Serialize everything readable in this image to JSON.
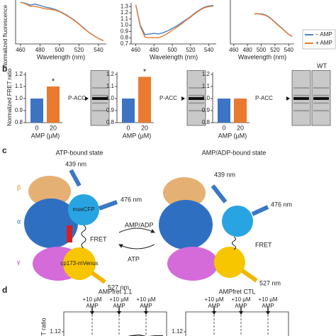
{
  "panel_labels": [
    "b",
    "c",
    "d"
  ],
  "chart_data": [
    {
      "type": "line",
      "ylabel": "Normalized fluorescence",
      "xlabel": "Wavelength (nm)",
      "x": [
        460,
        465,
        470,
        475,
        480,
        485,
        490,
        495,
        500,
        505,
        510,
        515,
        520,
        525,
        530,
        535,
        540,
        545
      ],
      "xlim": [
        455,
        548
      ],
      "xticks": [
        460,
        480,
        500,
        520,
        540
      ],
      "ylim": [
        0,
        1.05
      ],
      "yticks": [],
      "series": [
        {
          "name": "– AMP",
          "color": "#4a80c8",
          "values": [
            1.0,
            0.97,
            0.93,
            0.95,
            0.92,
            0.88,
            0.86,
            0.83,
            0.78,
            0.72,
            0.65,
            0.57,
            0.48,
            0.38,
            0.28,
            0.2,
            0.13,
            0.08
          ]
        },
        {
          "name": "+ AMP",
          "color": "#ea7a30",
          "values": [
            1.0,
            0.96,
            0.9,
            0.9,
            0.87,
            0.84,
            0.83,
            0.81,
            0.77,
            0.71,
            0.64,
            0.56,
            0.47,
            0.37,
            0.28,
            0.2,
            0.13,
            0.08
          ]
        }
      ]
    },
    {
      "type": "line",
      "xlabel": "Wavelength (nm)",
      "x": [
        460,
        465,
        470,
        475,
        480,
        485,
        490,
        495,
        500,
        505,
        510,
        515,
        520,
        525,
        530,
        535,
        540,
        545
      ],
      "xlim": [
        455,
        548
      ],
      "xticks": [
        460,
        480,
        500,
        520,
        540
      ],
      "ylim": [
        0.7,
        1.36
      ],
      "yticks": [
        {
          "value": 0.7,
          "label": "0.7"
        },
        0.8,
        0.9,
        {
          "value": 1.0,
          "label": "1.0"
        },
        1.1,
        1.2,
        1.3
      ],
      "series": [
        {
          "name": "– AMP",
          "color": "#4a80c8",
          "values": [
            1.33,
            1.0,
            0.85,
            0.86,
            0.87,
            0.86,
            0.88,
            0.91,
            0.95,
            0.99,
            1.04,
            1.09,
            1.14,
            1.2,
            1.25,
            1.29,
            1.31,
            1.32
          ]
        },
        {
          "name": "+ AMP",
          "color": "#ea7a30",
          "values": [
            1.33,
            0.98,
            0.81,
            0.8,
            0.8,
            0.8,
            0.83,
            0.87,
            0.92,
            0.97,
            1.02,
            1.08,
            1.13,
            1.19,
            1.24,
            1.28,
            1.3,
            1.31
          ]
        }
      ]
    },
    {
      "type": "line",
      "xlabel": "Wavelength (nm)",
      "x": [
        460,
        465,
        470,
        475,
        480,
        485,
        490,
        495,
        500,
        505,
        510,
        515,
        520,
        525,
        530,
        535,
        540,
        545
      ],
      "xlim": [
        455,
        548
      ],
      "xticks": [
        460,
        480,
        500,
        520,
        540
      ],
      "ylim": [
        0,
        1.05
      ],
      "yticks": [],
      "series": [
        {
          "name": "– AMP",
          "color": "#4a80c8",
          "values": [
            null,
            null,
            null,
            null,
            null,
            null,
            0.72,
            0.72,
            0.72,
            0.7,
            0.66,
            0.6,
            0.52,
            0.45,
            0.38,
            0.3,
            0.23,
            0.18
          ]
        },
        {
          "name": "+ AMP",
          "color": "#ea7a30",
          "values": [
            null,
            null,
            null,
            null,
            null,
            null,
            0.72,
            0.72,
            0.71,
            0.69,
            0.65,
            0.59,
            0.51,
            0.44,
            0.37,
            0.3,
            0.23,
            0.18
          ]
        }
      ]
    },
    {
      "type": "bar",
      "ylabel": "Normalized FRET ratio",
      "xlabel": "AMP (µM)",
      "categories": [
        "0",
        "20"
      ],
      "values": [
        1.0,
        1.1
      ],
      "colors": [
        "#3d73c3",
        "#ea7a30"
      ],
      "ylim": [
        0.8,
        1.22
      ],
      "yticks": [
        0.8,
        0.9,
        {
          "value": 1.0,
          "label": "1.0"
        },
        1.1,
        1.2
      ],
      "asterisk": "*",
      "blot_label": "P-ACC"
    },
    {
      "type": "bar",
      "xlabel": "AMP (µM)",
      "categories": [
        "0",
        "20"
      ],
      "values": [
        1.0,
        1.18
      ],
      "colors": [
        "#3d73c3",
        "#ea7a30"
      ],
      "ylim": [
        0.8,
        1.22
      ],
      "yticks": [
        0.8,
        0.9,
        {
          "value": 1.0,
          "label": "1.0"
        },
        1.1,
        1.2
      ],
      "asterisk": "*",
      "blot_label": "P-ACC"
    },
    {
      "type": "bar",
      "xlabel": "AMP (µM)",
      "categories": [
        "0",
        "20"
      ],
      "values": [
        1.0,
        1.0
      ],
      "colors": [
        "#3d73c3",
        "#ea7a30"
      ],
      "ylim": [
        0.8,
        1.22
      ],
      "yticks": [
        0.8,
        0.9,
        {
          "value": 1.0,
          "label": "1.0"
        },
        1.1,
        1.2
      ],
      "blot_label": "P-ACC",
      "blot_extra": "WT"
    },
    {
      "type": "trace",
      "title": "AMPfret 1.1",
      "ylabel": "FRET ratio",
      "ylim": [
        1.08,
        1.14
      ],
      "yticks": [
        1.12
      ],
      "events": [
        [
          "+10 µM",
          "AMP"
        ],
        [
          "+10 µM",
          "AMP"
        ],
        [
          "+10 µM",
          "AMP"
        ]
      ],
      "x": [
        0,
        1,
        2,
        3,
        4,
        5,
        6,
        7,
        8,
        9,
        10,
        11,
        12
      ],
      "series": [
        {
          "name": "AMPfret 1.1",
          "color": "#222",
          "values": [
            1.1,
            1.1,
            1.1,
            1.1,
            1.104,
            1.11,
            1.112,
            1.113,
            1.115,
            1.116,
            1.114,
            1.115,
            1.115
          ]
        }
      ]
    },
    {
      "type": "trace",
      "title": "AMPfret CTL",
      "ylim": [
        1.08,
        1.14
      ],
      "yticks": [
        1.12
      ],
      "events": [
        [
          "+10 µM",
          "AMP"
        ],
        [
          "+10 µM",
          "AMP"
        ],
        [
          "+10 µM",
          "AMP"
        ]
      ]
    }
  ],
  "diagram": {
    "left_title": "ATP-bound state",
    "right_title": "AMP/ADP-bound state",
    "excitation": [
      "439 nm",
      "439 nm"
    ],
    "cfp_emission": [
      "476 nm",
      "476 nm"
    ],
    "cfp": "mseCFP",
    "fret": [
      "FRET",
      "FRET"
    ],
    "venus": "cp173-mVenus",
    "venus_emission": [
      "527 nm",
      "527 nm"
    ],
    "forward": "AMP/ADP",
    "reverse": "ATP",
    "subunits": [
      "β",
      "α",
      "γ"
    ]
  }
}
